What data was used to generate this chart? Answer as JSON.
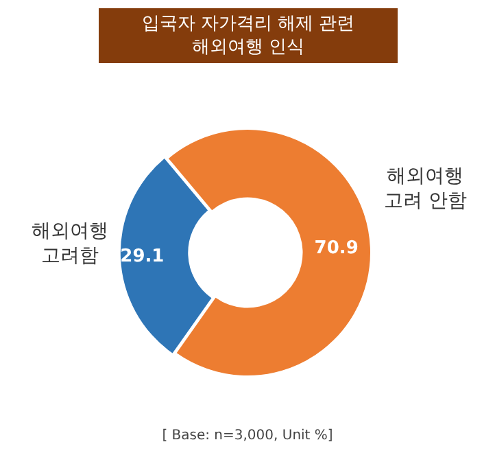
{
  "chart_data": {
    "type": "donut",
    "title": "입국자 자가격리 해제 관련\n해외여행 인식",
    "categories": [
      "해외여행\n고려 안함",
      "해외여행\n고려함"
    ],
    "values": [
      70.9,
      29.1
    ],
    "colors": [
      "#ed7d31",
      "#2e75b6"
    ],
    "data_labels": true,
    "legend": false,
    "annotations": [
      "[ Base:  n=3,000, Unit %]"
    ]
  }
}
